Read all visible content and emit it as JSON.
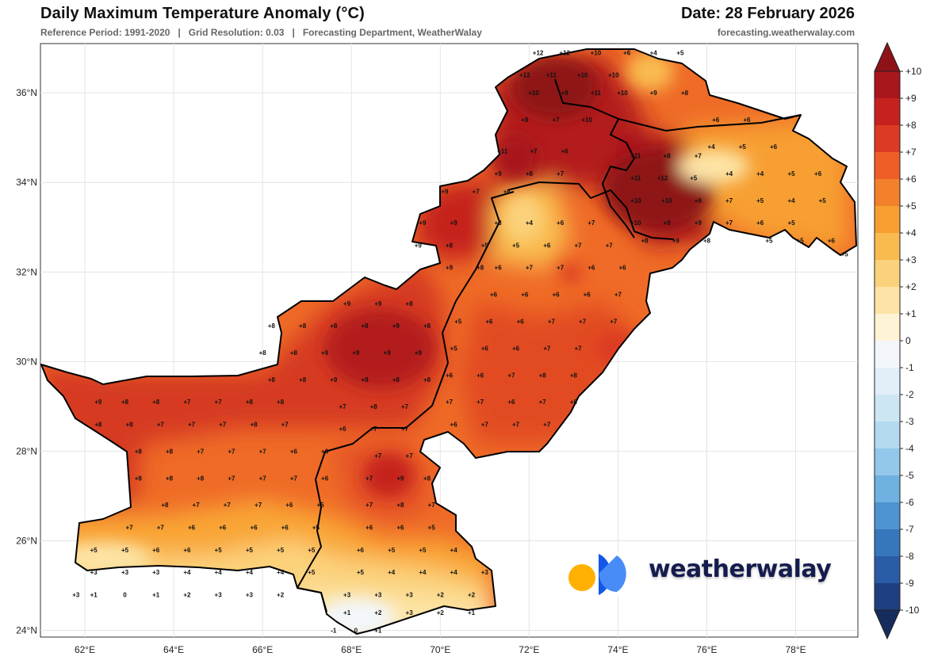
{
  "header": {
    "title": "Daily Maximum Temperature Anomaly (°C)",
    "date": "Date: 28 February 2026",
    "subtitle": "Reference Period: 1991-2020   |   Grid Resolution: 0.03   |   Forecasting Department, WeatherWalay",
    "website": "forecasting.weatherwalay.com"
  },
  "brand": {
    "name": "weatherwalay",
    "colors": [
      "#FFB000",
      "#1357E8",
      "#4A8CF7"
    ]
  },
  "map": {
    "lon_range": [
      61,
      79.4
    ],
    "lat_range": [
      23.85,
      37.1
    ],
    "lon_ticks": [
      62,
      64,
      66,
      68,
      70,
      72,
      74,
      76,
      78
    ],
    "lon_tick_labels": [
      "62°E",
      "64°E",
      "66°E",
      "68°E",
      "70°E",
      "72°E",
      "74°E",
      "76°E",
      "78°E"
    ],
    "lat_ticks": [
      24,
      26,
      28,
      30,
      32,
      34,
      36
    ],
    "lat_tick_labels": [
      "24°N",
      "26°N",
      "28°N",
      "30°N",
      "32°N",
      "34°N",
      "36°N"
    ]
  },
  "colorbar": {
    "levels": [
      "+10",
      "+9",
      "+8",
      "+7",
      "+6",
      "+5",
      "+4",
      "+3",
      "+2",
      "+1",
      "0",
      "-1",
      "-2",
      "-3",
      "-4",
      "-5",
      "-6",
      "-7",
      "-8",
      "-9",
      "-10"
    ],
    "colors": [
      "#8e1218",
      "#a8171c",
      "#c5221f",
      "#dc3a22",
      "#ef5e26",
      "#f3812c",
      "#f79f31",
      "#f9bb4f",
      "#fbd27c",
      "#fde4a6",
      "#fff3d6",
      "#f3f7fb",
      "#e2eff8",
      "#cde6f4",
      "#b4daef",
      "#93c8ea",
      "#6fb1e0",
      "#4d94d1",
      "#3676bd",
      "#2a5ba6",
      "#1e3f7f",
      "#152c5c"
    ],
    "top_arrow_color": "#8e1218",
    "bottom_arrow_color": "#152c5c"
  },
  "anomaly_labels": [
    [
      62.3,
      29.1,
      "+9"
    ],
    [
      62.9,
      29.1,
      "+8"
    ],
    [
      63.6,
      29.1,
      "+8"
    ],
    [
      64.3,
      29.1,
      "+7"
    ],
    [
      65,
      29.1,
      "+7"
    ],
    [
      65.7,
      29.1,
      "+8"
    ],
    [
      66.4,
      29.1,
      "+8"
    ],
    [
      62.3,
      28.6,
      "+8"
    ],
    [
      63,
      28.6,
      "+8"
    ],
    [
      63.7,
      28.6,
      "+7"
    ],
    [
      64.4,
      28.6,
      "+7"
    ],
    [
      65.1,
      28.6,
      "+7"
    ],
    [
      65.8,
      28.6,
      "+8"
    ],
    [
      66.5,
      28.6,
      "+7"
    ],
    [
      63.2,
      28.0,
      "+8"
    ],
    [
      63.9,
      28.0,
      "+8"
    ],
    [
      64.6,
      28.0,
      "+7"
    ],
    [
      65.3,
      28.0,
      "+7"
    ],
    [
      66,
      28.0,
      "+7"
    ],
    [
      66.7,
      28.0,
      "+6"
    ],
    [
      67.4,
      28.0,
      "+6"
    ],
    [
      63.2,
      27.4,
      "+8"
    ],
    [
      63.9,
      27.4,
      "+8"
    ],
    [
      64.6,
      27.4,
      "+8"
    ],
    [
      65.3,
      27.4,
      "+7"
    ],
    [
      66,
      27.4,
      "+7"
    ],
    [
      66.7,
      27.4,
      "+7"
    ],
    [
      67.4,
      27.4,
      "+6"
    ],
    [
      63.8,
      26.8,
      "+8"
    ],
    [
      64.5,
      26.8,
      "+7"
    ],
    [
      65.2,
      26.8,
      "+7"
    ],
    [
      65.9,
      26.8,
      "+7"
    ],
    [
      66.6,
      26.8,
      "+6"
    ],
    [
      67.3,
      26.8,
      "+5"
    ],
    [
      63,
      26.3,
      "+7"
    ],
    [
      63.7,
      26.3,
      "+7"
    ],
    [
      64.4,
      26.3,
      "+6"
    ],
    [
      65.1,
      26.3,
      "+6"
    ],
    [
      65.8,
      26.3,
      "+6"
    ],
    [
      66.5,
      26.3,
      "+6"
    ],
    [
      67.2,
      26.3,
      "+5"
    ],
    [
      62.2,
      25.8,
      "+5"
    ],
    [
      62.9,
      25.8,
      "+5"
    ],
    [
      63.6,
      25.8,
      "+6"
    ],
    [
      64.3,
      25.8,
      "+6"
    ],
    [
      65,
      25.8,
      "+5"
    ],
    [
      65.7,
      25.8,
      "+5"
    ],
    [
      66.4,
      25.8,
      "+5"
    ],
    [
      67.1,
      25.8,
      "+5"
    ],
    [
      62.2,
      25.3,
      "+3"
    ],
    [
      62.9,
      25.3,
      "+3"
    ],
    [
      63.6,
      25.3,
      "+3"
    ],
    [
      64.3,
      25.3,
      "+4"
    ],
    [
      65,
      25.3,
      "+4"
    ],
    [
      65.7,
      25.3,
      "+4"
    ],
    [
      66.4,
      25.3,
      "+4"
    ],
    [
      67.1,
      25.3,
      "+5"
    ],
    [
      61.8,
      24.8,
      "+3"
    ],
    [
      62.2,
      24.8,
      "+1"
    ],
    [
      62.9,
      24.8,
      "0"
    ],
    [
      63.6,
      24.8,
      "+1"
    ],
    [
      64.3,
      24.8,
      "+2"
    ],
    [
      65,
      24.8,
      "+3"
    ],
    [
      65.7,
      24.8,
      "+3"
    ],
    [
      66.4,
      24.8,
      "+2"
    ],
    [
      66.2,
      29.6,
      "+8"
    ],
    [
      66.9,
      29.6,
      "+8"
    ],
    [
      67.6,
      29.6,
      "+9"
    ],
    [
      68.3,
      29.6,
      "+9"
    ],
    [
      69,
      29.6,
      "+8"
    ],
    [
      69.7,
      29.6,
      "+8"
    ],
    [
      66,
      30.2,
      "+8"
    ],
    [
      66.7,
      30.2,
      "+8"
    ],
    [
      67.4,
      30.2,
      "+9"
    ],
    [
      68.1,
      30.2,
      "+9"
    ],
    [
      68.8,
      30.2,
      "+9"
    ],
    [
      69.5,
      30.2,
      "+9"
    ],
    [
      66.2,
      30.8,
      "+8"
    ],
    [
      66.9,
      30.8,
      "+8"
    ],
    [
      67.6,
      30.8,
      "+8"
    ],
    [
      68.3,
      30.8,
      "+8"
    ],
    [
      69,
      30.8,
      "+9"
    ],
    [
      69.7,
      30.8,
      "+8"
    ],
    [
      67.9,
      31.3,
      "+9"
    ],
    [
      68.6,
      31.3,
      "+9"
    ],
    [
      69.3,
      31.3,
      "+8"
    ],
    [
      67.8,
      29.0,
      "+7"
    ],
    [
      68.5,
      29.0,
      "+8"
    ],
    [
      69.2,
      29.0,
      "+7"
    ],
    [
      67.8,
      28.5,
      "+6"
    ],
    [
      68.5,
      28.5,
      "+7"
    ],
    [
      69.2,
      28.5,
      "+7"
    ],
    [
      68.6,
      27.9,
      "+7"
    ],
    [
      69.3,
      27.9,
      "+7"
    ],
    [
      68.4,
      27.4,
      "+7"
    ],
    [
      69.1,
      27.4,
      "+9"
    ],
    [
      69.7,
      27.4,
      "+8"
    ],
    [
      68.4,
      26.8,
      "+7"
    ],
    [
      69.1,
      26.8,
      "+8"
    ],
    [
      69.8,
      26.8,
      "+7"
    ],
    [
      68.4,
      26.3,
      "+6"
    ],
    [
      69.1,
      26.3,
      "+6"
    ],
    [
      69.8,
      26.3,
      "+5"
    ],
    [
      68.2,
      25.8,
      "+6"
    ],
    [
      68.9,
      25.8,
      "+5"
    ],
    [
      69.6,
      25.8,
      "+5"
    ],
    [
      70.3,
      25.8,
      "+4"
    ],
    [
      68.2,
      25.3,
      "+5"
    ],
    [
      68.9,
      25.3,
      "+4"
    ],
    [
      69.6,
      25.3,
      "+4"
    ],
    [
      70.3,
      25.3,
      "+4"
    ],
    [
      71,
      25.3,
      "+3"
    ],
    [
      67.9,
      24.8,
      "+3"
    ],
    [
      68.6,
      24.8,
      "+3"
    ],
    [
      69.3,
      24.8,
      "+3"
    ],
    [
      70,
      24.8,
      "+2"
    ],
    [
      70.7,
      24.8,
      "+2"
    ],
    [
      67.9,
      24.4,
      "+1"
    ],
    [
      68.6,
      24.4,
      "+2"
    ],
    [
      69.3,
      24.4,
      "+3"
    ],
    [
      70,
      24.4,
      "+2"
    ],
    [
      70.7,
      24.4,
      "+1"
    ],
    [
      67.6,
      24.0,
      "-1"
    ],
    [
      68.1,
      24.0,
      "0"
    ],
    [
      68.6,
      24.0,
      "+1"
    ],
    [
      70.2,
      29.1,
      "+7"
    ],
    [
      70.9,
      29.1,
      "+7"
    ],
    [
      71.6,
      29.1,
      "+6"
    ],
    [
      72.3,
      29.1,
      "+7"
    ],
    [
      73,
      29.1,
      "+8"
    ],
    [
      70.3,
      28.6,
      "+6"
    ],
    [
      71,
      28.6,
      "+7"
    ],
    [
      71.7,
      28.6,
      "+7"
    ],
    [
      72.4,
      28.6,
      "+7"
    ],
    [
      70.2,
      29.7,
      "+6"
    ],
    [
      70.9,
      29.7,
      "+6"
    ],
    [
      71.6,
      29.7,
      "+7"
    ],
    [
      72.3,
      29.7,
      "+8"
    ],
    [
      73,
      29.7,
      "+8"
    ],
    [
      70.3,
      30.3,
      "+5"
    ],
    [
      71,
      30.3,
      "+6"
    ],
    [
      71.7,
      30.3,
      "+6"
    ],
    [
      72.4,
      30.3,
      "+7"
    ],
    [
      73.1,
      30.3,
      "+7"
    ],
    [
      70.4,
      30.9,
      "+5"
    ],
    [
      71.1,
      30.9,
      "+6"
    ],
    [
      71.8,
      30.9,
      "+6"
    ],
    [
      72.5,
      30.9,
      "+7"
    ],
    [
      73.2,
      30.9,
      "+7"
    ],
    [
      73.9,
      30.9,
      "+7"
    ],
    [
      71.2,
      31.5,
      "+6"
    ],
    [
      71.9,
      31.5,
      "+6"
    ],
    [
      72.6,
      31.5,
      "+6"
    ],
    [
      73.3,
      31.5,
      "+6"
    ],
    [
      74,
      31.5,
      "+7"
    ],
    [
      71.3,
      32.1,
      "+6"
    ],
    [
      72,
      32.1,
      "+7"
    ],
    [
      72.7,
      32.1,
      "+7"
    ],
    [
      73.4,
      32.1,
      "+6"
    ],
    [
      74.1,
      32.1,
      "+6"
    ],
    [
      71,
      32.6,
      "+5"
    ],
    [
      71.7,
      32.6,
      "+5"
    ],
    [
      72.4,
      32.6,
      "+6"
    ],
    [
      73.1,
      32.6,
      "+7"
    ],
    [
      73.8,
      32.6,
      "+7"
    ],
    [
      71.3,
      33.1,
      "+3"
    ],
    [
      72,
      33.1,
      "+4"
    ],
    [
      72.7,
      33.1,
      "+6"
    ],
    [
      73.4,
      33.1,
      "+7"
    ],
    [
      69.5,
      32.6,
      "+9"
    ],
    [
      70.2,
      32.6,
      "+8"
    ],
    [
      69.6,
      33.1,
      "+9"
    ],
    [
      70.3,
      33.1,
      "+9"
    ],
    [
      70.2,
      32.1,
      "+9"
    ],
    [
      70.9,
      32.1,
      "+8"
    ],
    [
      70.1,
      33.8,
      "+9"
    ],
    [
      70.8,
      33.8,
      "+7"
    ],
    [
      71.5,
      33.8,
      "+6"
    ],
    [
      71.3,
      34.2,
      "+9"
    ],
    [
      72,
      34.2,
      "+8"
    ],
    [
      72.7,
      34.2,
      "+7"
    ],
    [
      71.4,
      34.7,
      "+11"
    ],
    [
      72.1,
      34.7,
      "+7"
    ],
    [
      72.8,
      34.7,
      "+6"
    ],
    [
      71.9,
      35.4,
      "+8"
    ],
    [
      72.6,
      35.4,
      "+7"
    ],
    [
      73.3,
      35.4,
      "+10"
    ],
    [
      72.1,
      36.0,
      "+10"
    ],
    [
      72.8,
      36.0,
      "+9"
    ],
    [
      73.5,
      36.0,
      "+11"
    ],
    [
      71.9,
      36.4,
      "+12"
    ],
    [
      72.5,
      36.4,
      "+11"
    ],
    [
      73.2,
      36.4,
      "+10"
    ],
    [
      73.9,
      36.4,
      "+10"
    ],
    [
      72.2,
      36.9,
      "+12"
    ],
    [
      72.8,
      36.9,
      "+12"
    ],
    [
      73.5,
      36.9,
      "+10"
    ],
    [
      74.2,
      36.9,
      "+6"
    ],
    [
      74.8,
      36.9,
      "+4"
    ],
    [
      75.4,
      36.9,
      "+5"
    ],
    [
      74.1,
      36.0,
      "+10"
    ],
    [
      74.8,
      36.0,
      "+9"
    ],
    [
      75.5,
      36.0,
      "+8"
    ],
    [
      76.2,
      35.4,
      "+6"
    ],
    [
      76.9,
      35.4,
      "+6"
    ],
    [
      74.4,
      34.6,
      "+11"
    ],
    [
      75.1,
      34.6,
      "+8"
    ],
    [
      75.8,
      34.6,
      "+7"
    ],
    [
      74.4,
      34.1,
      "+11"
    ],
    [
      75,
      34.1,
      "+12"
    ],
    [
      75.7,
      34.1,
      "+5"
    ],
    [
      76.1,
      34.8,
      "+4"
    ],
    [
      76.8,
      34.8,
      "+5"
    ],
    [
      77.5,
      34.8,
      "+6"
    ],
    [
      76.5,
      34.2,
      "+4"
    ],
    [
      77.2,
      34.2,
      "+4"
    ],
    [
      77.9,
      34.2,
      "+5"
    ],
    [
      78.5,
      34.2,
      "+6"
    ],
    [
      74.4,
      33.6,
      "+10"
    ],
    [
      75.1,
      33.6,
      "+10"
    ],
    [
      75.8,
      33.6,
      "+9"
    ],
    [
      76.5,
      33.6,
      "+7"
    ],
    [
      77.2,
      33.6,
      "+5"
    ],
    [
      77.9,
      33.6,
      "+4"
    ],
    [
      78.6,
      33.6,
      "+5"
    ],
    [
      74.4,
      33.1,
      "+10"
    ],
    [
      75.1,
      33.1,
      "+9"
    ],
    [
      75.8,
      33.1,
      "+9"
    ],
    [
      76.5,
      33.1,
      "+7"
    ],
    [
      77.2,
      33.1,
      "+6"
    ],
    [
      77.9,
      33.1,
      "+5"
    ],
    [
      74.6,
      32.7,
      "+8"
    ],
    [
      75.3,
      32.7,
      "+9"
    ],
    [
      76,
      32.7,
      "+8"
    ],
    [
      77.4,
      32.7,
      "+5"
    ],
    [
      78.1,
      32.7,
      "+5"
    ],
    [
      78.8,
      32.7,
      "+6"
    ],
    [
      79.1,
      32.4,
      "+5"
    ]
  ]
}
